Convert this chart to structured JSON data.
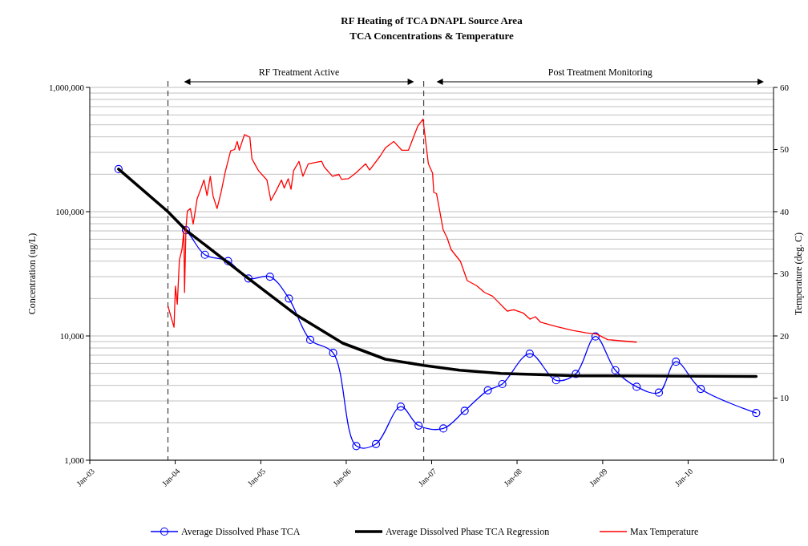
{
  "chart_data": {
    "type": "line",
    "title": "RF Heating of TCA DNAPL Source Area",
    "subtitle": "TCA Concentrations & Temperature",
    "ylabel": "Concentration (ug/L)",
    "y2label": "Temperature (deg. C)",
    "xlim": [
      "2003-01-01",
      "2011-01-01"
    ],
    "xticks": [
      {
        "value": "2003-01-01",
        "label": "Jan-03"
      },
      {
        "value": "2004-01-01",
        "label": "Jan-04"
      },
      {
        "value": "2005-01-01",
        "label": "Jan-05"
      },
      {
        "value": "2006-01-01",
        "label": "Jan-06"
      },
      {
        "value": "2007-01-01",
        "label": "Jan-07"
      },
      {
        "value": "2008-01-01",
        "label": "Jan-08"
      },
      {
        "value": "2009-01-01",
        "label": "Jan-09"
      },
      {
        "value": "2010-01-01",
        "label": "Jan-10"
      }
    ],
    "ylim": [
      1000,
      1000000
    ],
    "yticks": [
      {
        "value": 1000,
        "label": "1,000"
      },
      {
        "value": 10000,
        "label": "10,000"
      },
      {
        "value": 100000,
        "label": "100,000"
      },
      {
        "value": 1000000,
        "label": "1,000,000"
      }
    ],
    "y2lim": [
      0,
      60
    ],
    "y2ticks": [
      0,
      10,
      20,
      30,
      40,
      50,
      60
    ],
    "log": "y",
    "grid": "y",
    "legend": "bottom",
    "ref_lines": [
      {
        "axis": "x",
        "value": "2003-12-01",
        "line_style": "dashed",
        "color": "#404040"
      },
      {
        "axis": "x",
        "value": "2006-11-28",
        "line_style": "dashed",
        "color": "#404040"
      }
    ],
    "annotations": [
      "RF Treatment Active",
      "Post Treatment Monitoring"
    ],
    "series": [
      {
        "name": "Average Dissolved Phase TCA",
        "color": "#0000ff",
        "marker": "circle",
        "x": [
          "2003-05-04",
          "2004-02-16",
          "2004-05-07",
          "2004-08-14",
          "2004-11-09",
          "2005-02-09",
          "2005-05-01",
          "2005-07-31",
          "2005-11-06",
          "2006-02-13",
          "2006-05-08",
          "2006-08-22",
          "2006-11-06",
          "2007-02-20",
          "2007-05-22",
          "2007-08-29",
          "2007-10-30",
          "2008-02-24",
          "2008-06-16",
          "2008-09-08",
          "2008-12-01",
          "2009-02-24",
          "2009-05-26",
          "2009-08-29",
          "2009-11-10",
          "2010-02-24",
          "2010-10-19"
        ],
        "values": [
          220000,
          71000,
          45000,
          40000,
          29000,
          30000,
          20000,
          9300,
          7300,
          1300,
          1350,
          2700,
          1900,
          1800,
          2500,
          3650,
          4100,
          7200,
          4400,
          4950,
          9900,
          5300,
          3900,
          3500,
          6200,
          3750,
          2400
        ]
      },
      {
        "name": "Average Dissolved Phase TCA Regression",
        "color": "#000000",
        "marker": "none",
        "x": [
          "2003-05-04",
          "2003-12-01",
          "2004-02-16",
          "2004-11-09",
          "2005-06-03",
          "2005-12-17",
          "2006-06-17",
          "2006-11-28",
          "2007-05-01",
          "2007-10-23",
          "2008-09-16",
          "2010-10-19"
        ],
        "values": [
          220000,
          100000,
          71000,
          29000,
          14700,
          8750,
          6500,
          5800,
          5300,
          5000,
          4780,
          4730
        ]
      },
      {
        "name": "Max Temperature",
        "color": "#ff0000",
        "marker": "none",
        "axis": "y2",
        "x": [
          "2003-12-01",
          "2003-12-27",
          "2004-01-02",
          "2004-01-10",
          "2004-01-19",
          "2004-01-30",
          "2004-02-07",
          "2004-02-10",
          "2004-02-16",
          "2004-02-22",
          "2004-03-06",
          "2004-03-18",
          "2004-04-04",
          "2004-04-21",
          "2004-05-03",
          "2004-05-16",
          "2004-05-30",
          "2004-06-11",
          "2004-06-28",
          "2004-07-15",
          "2004-08-02",
          "2004-08-25",
          "2004-09-11",
          "2004-09-22",
          "2004-10-01",
          "2004-10-23",
          "2004-11-15",
          "2004-11-24",
          "2004-12-22",
          "2005-01-27",
          "2005-02-13",
          "2005-03-08",
          "2005-03-30",
          "2005-04-11",
          "2005-04-28",
          "2005-05-10",
          "2005-05-21",
          "2005-06-13",
          "2005-06-30",
          "2005-07-23",
          "2005-09-18",
          "2005-09-29",
          "2005-11-03",
          "2005-12-01",
          "2005-12-12",
          "2006-01-10",
          "2006-02-13",
          "2006-03-25",
          "2006-04-11",
          "2006-05-27",
          "2006-06-18",
          "2006-07-23",
          "2006-08-26",
          "2006-09-24",
          "2006-11-03",
          "2006-11-25",
          "2006-12-18",
          "2007-01-05",
          "2007-01-10",
          "2007-01-22",
          "2007-02-19",
          "2007-03-08",
          "2007-03-25",
          "2007-05-04",
          "2007-06-02",
          "2007-07-12",
          "2007-08-15",
          "2007-09-18",
          "2007-11-20",
          "2007-12-18",
          "2008-01-27",
          "2008-02-25",
          "2008-03-19",
          "2008-04-11",
          "2008-06-18",
          "2008-08-26",
          "2008-10-22",
          "2008-12-06",
          "2009-01-22",
          "2009-05-25"
        ],
        "values": [
          24.8,
          21.4,
          28,
          25.1,
          32.2,
          33.9,
          36.9,
          27,
          37.3,
          40.1,
          40.5,
          38,
          42.1,
          43.8,
          45.1,
          42.6,
          45.7,
          42.5,
          40.5,
          43.1,
          46.4,
          49.8,
          50,
          51.3,
          49.9,
          52.4,
          52,
          48.5,
          46.6,
          45.1,
          41.8,
          43.4,
          45.1,
          43.8,
          45.3,
          43.6,
          46.6,
          48.1,
          45.7,
          47.7,
          48.1,
          47.2,
          45.7,
          46,
          45.2,
          45.3,
          46.3,
          47.7,
          46.7,
          49,
          50.3,
          51.3,
          49.9,
          49.9,
          53.8,
          54.9,
          47.7,
          46.2,
          43.1,
          42.9,
          37.1,
          35.8,
          33.9,
          32,
          28.9,
          28.1,
          27,
          26.4,
          24,
          24.2,
          23.7,
          22.7,
          23.1,
          22.2,
          21.5,
          20.9,
          20.5,
          20.3,
          19.4,
          19
        ]
      }
    ]
  }
}
